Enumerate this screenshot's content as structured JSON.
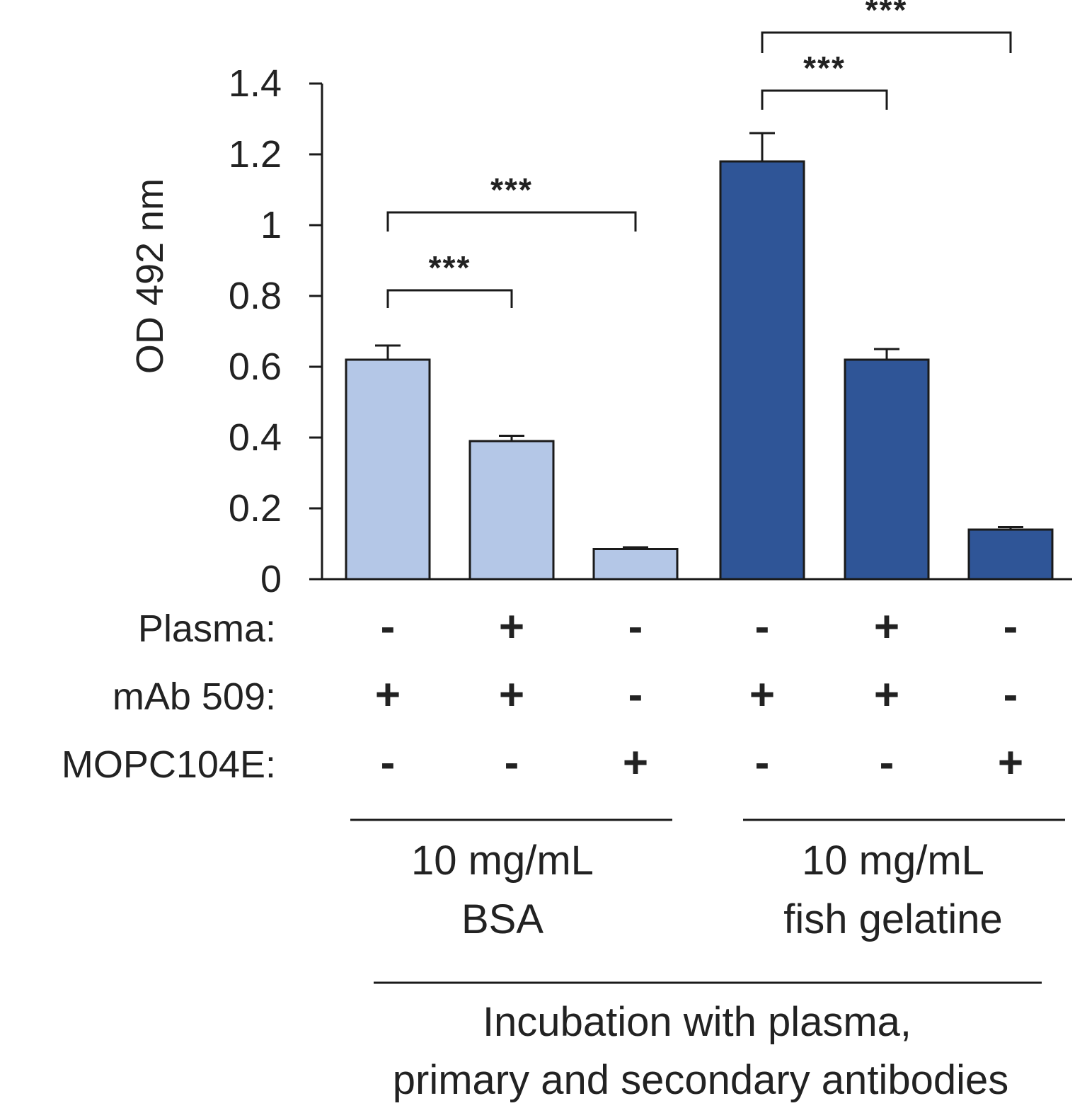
{
  "chart_data": {
    "type": "bar",
    "ylabel": "OD 492 nm",
    "ylim": [
      0,
      1.4
    ],
    "yticks": [
      0,
      0.2,
      0.4,
      0.6,
      0.8,
      1,
      1.2,
      1.4
    ],
    "ytick_labels": [
      "0",
      "0.2",
      "0.4",
      "0.6",
      "0.8",
      "1",
      "1.2",
      "1.4"
    ],
    "values": [
      0.62,
      0.39,
      0.085,
      1.18,
      0.62,
      0.14
    ],
    "errors": [
      0.04,
      0.015,
      0.005,
      0.08,
      0.03,
      0.007
    ],
    "groups": [
      {
        "label_line1": "10 mg/mL",
        "label_line2": "BSA",
        "color": "#b4c7e7",
        "bar_indices": [
          0,
          1,
          2
        ]
      },
      {
        "label_line1": "10 mg/mL",
        "label_line2": "fish gelatine",
        "color": "#2f5597",
        "bar_indices": [
          3,
          4,
          5
        ]
      }
    ],
    "conditions": [
      {
        "label": "Plasma:",
        "signs": [
          "-",
          "+",
          "-",
          "-",
          "+",
          "-"
        ]
      },
      {
        "label": "mAb 509:",
        "signs": [
          "+",
          "+",
          "-",
          "+",
          "+",
          "-"
        ]
      },
      {
        "label": "MOPC104E:",
        "signs": [
          "-",
          "-",
          "+",
          "-",
          "-",
          "+"
        ]
      }
    ],
    "significance": [
      {
        "from": 0,
        "to": 1,
        "label": "***"
      },
      {
        "from": 0,
        "to": 2,
        "label": "***"
      },
      {
        "from": 3,
        "to": 4,
        "label": "***"
      },
      {
        "from": 3,
        "to": 5,
        "label": "***"
      }
    ],
    "footer_line1": "Incubation with plasma,",
    "footer_line2": "primary and secondary antibodies"
  }
}
